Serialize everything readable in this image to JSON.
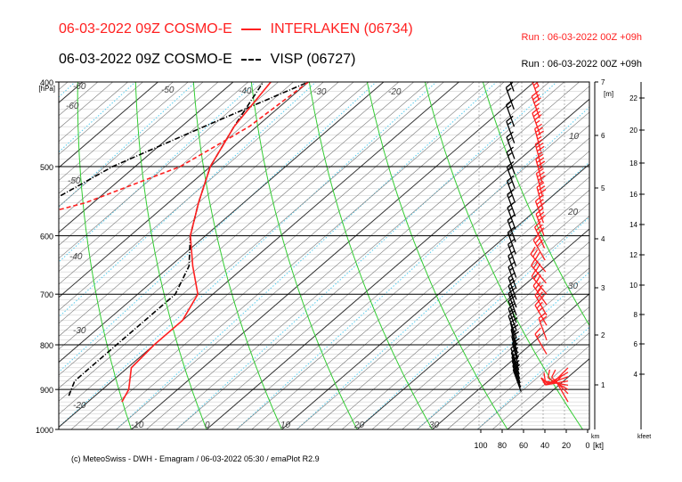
{
  "header": {
    "title_red_model": "06-03-2022 09Z COSMO-E",
    "title_red_station": "INTERLAKEN (06734)",
    "title_black_model": "06-03-2022 09Z COSMO-E",
    "title_black_station": "VISP (06727)",
    "run_red": "Run : 06-03-2022 00Z +09h",
    "run_black": "Run : 06-03-2022 00Z +09h"
  },
  "footer": "(c) MeteoSwiss - DWH - Emagram / 06-03-2022  05:30 / emaPlot R2.9",
  "colors": {
    "red": "#ff2020",
    "black": "#000000",
    "isotherm": "#6d6d6d",
    "dry_adiabat": "#33cc33",
    "mixing_ratio": "#55ccee"
  },
  "chart_data": {
    "type": "line",
    "chart_kind": "emagram",
    "ylabel": "[hPa]",
    "ylim": [
      1000,
      400
    ],
    "xlim": [
      -70,
      40
    ],
    "y_ticks": [
      "400",
      "500",
      "600",
      "700",
      "800",
      "900",
      "1000"
    ],
    "temp_labels": [
      "-60",
      "-50",
      "-40",
      "-30",
      "-20",
      "-10",
      "0",
      "10",
      "20",
      "30"
    ],
    "km_axis": {
      "label": "[m]",
      "ticks": [
        "1",
        "2",
        "3",
        "4",
        "5",
        "6",
        "7"
      ],
      "corner_label": "km"
    },
    "kfeet_axis": {
      "ticks": [
        "4",
        "6",
        "8",
        "10",
        "12",
        "14",
        "16",
        "18",
        "20",
        "22"
      ],
      "corner_label": "kfeet"
    },
    "mixing_ratio_labels": [
      "10",
      "20",
      "30"
    ],
    "wind_axis": {
      "ticks": [
        "100",
        "80",
        "60",
        "40",
        "20",
        "0"
      ],
      "unit": "[kt]"
    },
    "series": [
      {
        "name": "INTERLAKEN (06734)",
        "color": "#ff2020",
        "temperature": [
          [
            930,
            -15.5
          ],
          [
            900,
            -16.5
          ],
          [
            850,
            -19.5
          ],
          [
            800,
            -20
          ],
          [
            750,
            -20
          ],
          [
            700,
            -22
          ],
          [
            650,
            -27
          ],
          [
            600,
            -32
          ],
          [
            550,
            -36
          ],
          [
            500,
            -40
          ],
          [
            450,
            -43
          ],
          [
            400,
            -45
          ]
        ],
        "dewpoint": [
          [
            915,
            -38
          ],
          [
            885,
            -48
          ],
          [
            860,
            -50
          ],
          [
            830,
            -46
          ],
          [
            800,
            -39
          ],
          [
            780,
            -40
          ],
          [
            760,
            -50
          ],
          [
            720,
            -68
          ],
          [
            650,
            -70
          ],
          [
            620,
            -66
          ],
          [
            580,
            -58
          ],
          [
            550,
            -51
          ],
          [
            500,
            -44
          ],
          [
            450,
            -41
          ],
          [
            400,
            -40
          ]
        ]
      },
      {
        "name": "VISP (06727)",
        "color": "#000000",
        "temperature": [
          [
            915,
            -23.5
          ],
          [
            880,
            -25
          ],
          [
            850,
            -25
          ],
          [
            800,
            -25
          ],
          [
            750,
            -25
          ],
          [
            700,
            -25
          ],
          [
            650,
            -27.5
          ],
          [
            600,
            -32
          ],
          [
            550,
            -36
          ],
          [
            500,
            -40
          ],
          [
            450,
            -43
          ],
          [
            400,
            -46
          ]
        ],
        "dewpoint": [
          [
            900,
            -41
          ],
          [
            850,
            -43
          ],
          [
            800,
            -44
          ],
          [
            760,
            -45
          ],
          [
            700,
            -55
          ],
          [
            660,
            -70
          ],
          [
            620,
            -65
          ],
          [
            580,
            -58
          ],
          [
            550,
            -56
          ],
          [
            500,
            -53
          ],
          [
            450,
            -47
          ],
          [
            400,
            -40
          ]
        ]
      }
    ],
    "wind_barbs_interlaken": [
      {
        "p": 930,
        "dir": 330,
        "spd": 10
      },
      {
        "p": 910,
        "dir": 315,
        "spd": 10
      },
      {
        "p": 900,
        "dir": 300,
        "spd": 10
      },
      {
        "p": 890,
        "dir": 280,
        "spd": 10
      },
      {
        "p": 880,
        "dir": 260,
        "spd": 10
      },
      {
        "p": 870,
        "dir": 250,
        "spd": 10
      },
      {
        "p": 860,
        "dir": 240,
        "spd": 10
      },
      {
        "p": 850,
        "dir": 225,
        "spd": 10
      },
      {
        "p": 820,
        "dir": 330,
        "spd": 15
      },
      {
        "p": 790,
        "dir": 340,
        "spd": 20
      },
      {
        "p": 760,
        "dir": 330,
        "spd": 25
      },
      {
        "p": 740,
        "dir": 330,
        "spd": 30
      },
      {
        "p": 720,
        "dir": 325,
        "spd": 30
      },
      {
        "p": 700,
        "dir": 320,
        "spd": 30
      },
      {
        "p": 680,
        "dir": 320,
        "spd": 30
      },
      {
        "p": 660,
        "dir": 320,
        "spd": 30
      },
      {
        "p": 640,
        "dir": 330,
        "spd": 30
      },
      {
        "p": 620,
        "dir": 335,
        "spd": 30
      },
      {
        "p": 600,
        "dir": 340,
        "spd": 30
      },
      {
        "p": 580,
        "dir": 340,
        "spd": 35
      },
      {
        "p": 560,
        "dir": 345,
        "spd": 35
      },
      {
        "p": 540,
        "dir": 345,
        "spd": 35
      },
      {
        "p": 520,
        "dir": 345,
        "spd": 35
      },
      {
        "p": 500,
        "dir": 345,
        "spd": 35
      },
      {
        "p": 480,
        "dir": 345,
        "spd": 35
      },
      {
        "p": 460,
        "dir": 340,
        "spd": 35
      },
      {
        "p": 440,
        "dir": 340,
        "spd": 35
      },
      {
        "p": 420,
        "dir": 340,
        "spd": 35
      },
      {
        "p": 405,
        "dir": 335,
        "spd": 35
      }
    ],
    "wind_barbs_visp": [
      {
        "p": 905,
        "dir": 340,
        "spd": 15
      },
      {
        "p": 895,
        "dir": 340,
        "spd": 15
      },
      {
        "p": 885,
        "dir": 340,
        "spd": 15
      },
      {
        "p": 875,
        "dir": 340,
        "spd": 15
      },
      {
        "p": 865,
        "dir": 340,
        "spd": 15
      },
      {
        "p": 855,
        "dir": 340,
        "spd": 15
      },
      {
        "p": 845,
        "dir": 345,
        "spd": 15
      },
      {
        "p": 830,
        "dir": 345,
        "spd": 15
      },
      {
        "p": 815,
        "dir": 345,
        "spd": 15
      },
      {
        "p": 800,
        "dir": 345,
        "spd": 15
      },
      {
        "p": 785,
        "dir": 340,
        "spd": 15
      },
      {
        "p": 770,
        "dir": 340,
        "spd": 15
      },
      {
        "p": 755,
        "dir": 340,
        "spd": 15
      },
      {
        "p": 740,
        "dir": 340,
        "spd": 15
      },
      {
        "p": 725,
        "dir": 340,
        "spd": 15
      },
      {
        "p": 710,
        "dir": 340,
        "spd": 15
      },
      {
        "p": 690,
        "dir": 340,
        "spd": 15
      },
      {
        "p": 670,
        "dir": 340,
        "spd": 15
      },
      {
        "p": 650,
        "dir": 340,
        "spd": 15
      },
      {
        "p": 630,
        "dir": 340,
        "spd": 15
      },
      {
        "p": 610,
        "dir": 340,
        "spd": 15
      },
      {
        "p": 590,
        "dir": 340,
        "spd": 15
      },
      {
        "p": 570,
        "dir": 340,
        "spd": 15
      },
      {
        "p": 550,
        "dir": 340,
        "spd": 15
      },
      {
        "p": 530,
        "dir": 340,
        "spd": 15
      },
      {
        "p": 510,
        "dir": 340,
        "spd": 15
      },
      {
        "p": 490,
        "dir": 340,
        "spd": 15
      },
      {
        "p": 470,
        "dir": 340,
        "spd": 15
      },
      {
        "p": 450,
        "dir": 340,
        "spd": 15
      },
      {
        "p": 430,
        "dir": 340,
        "spd": 15
      },
      {
        "p": 410,
        "dir": 340,
        "spd": 15
      }
    ]
  }
}
